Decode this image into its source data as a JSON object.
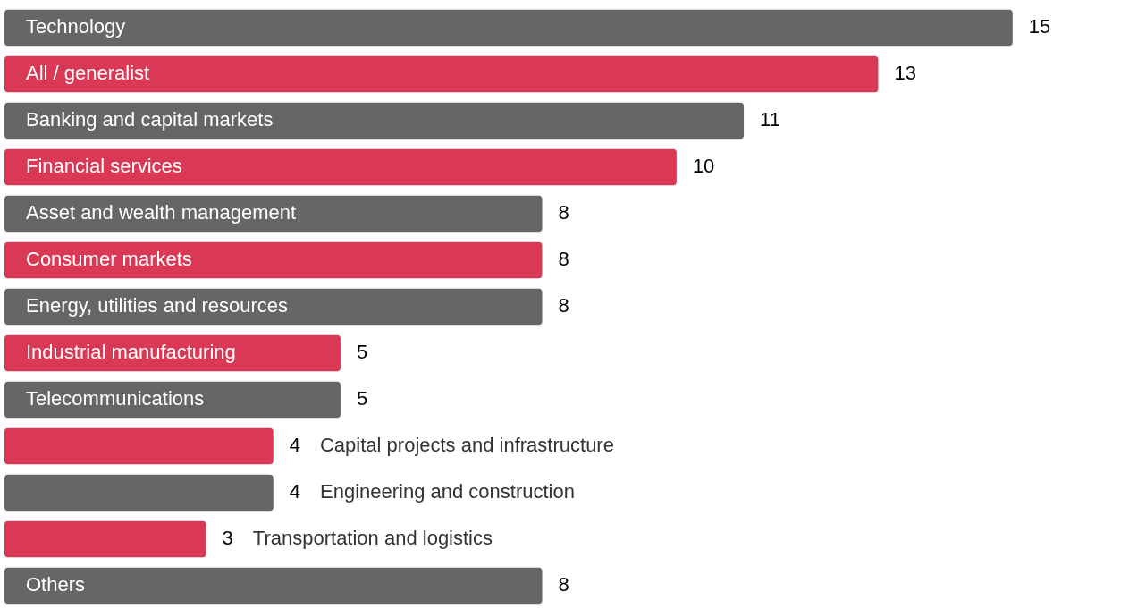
{
  "chart_data": {
    "type": "bar",
    "orientation": "horizontal",
    "data_labels": true,
    "categories": [
      "Technology",
      "All / generalist",
      "Banking and capital markets",
      "Financial services",
      "Asset and wealth management",
      "Consumer markets",
      "Energy, utilities and resources",
      "Industrial manufacturing",
      "Telecommunications",
      "Capital projects and infrastructure",
      "Engineering and construction",
      "Transportation and logistics",
      "Others"
    ],
    "values": [
      15,
      13,
      11,
      10,
      8,
      8,
      8,
      5,
      5,
      4,
      4,
      3,
      8
    ],
    "colors": [
      "#666666",
      "#d93954",
      "#666666",
      "#d93954",
      "#666666",
      "#d93954",
      "#666666",
      "#d93954",
      "#666666",
      "#d93954",
      "#666666",
      "#d93954",
      "#666666"
    ]
  }
}
